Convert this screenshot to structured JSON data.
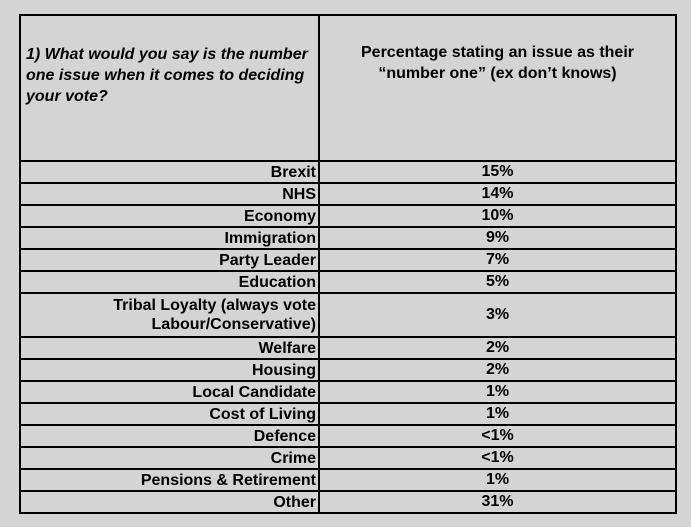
{
  "header": {
    "question": "1) What would you say is the number one issue when it comes to deciding your vote?",
    "column_heading": "Percentage stating an issue as their “number one” (ex don’t knows)"
  },
  "rows": [
    {
      "issue": "Brexit",
      "pct": "15%"
    },
    {
      "issue": "NHS",
      "pct": "14%"
    },
    {
      "issue": "Economy",
      "pct": "10%"
    },
    {
      "issue": "Immigration",
      "pct": "9%"
    },
    {
      "issue": "Party Leader",
      "pct": "7%"
    },
    {
      "issue": "Education",
      "pct": "5%"
    },
    {
      "issue": "Tribal Loyalty (always vote Labour/Conservative)",
      "pct": "3%"
    },
    {
      "issue": "Welfare",
      "pct": "2%"
    },
    {
      "issue": "Housing",
      "pct": "2%"
    },
    {
      "issue": "Local Candidate",
      "pct": "1%"
    },
    {
      "issue": "Cost of Living",
      "pct": "1%"
    },
    {
      "issue": "Defence",
      "pct": "<1%"
    },
    {
      "issue": "Crime",
      "pct": "<1%"
    },
    {
      "issue": "Pensions & Retirement",
      "pct": "1%"
    },
    {
      "issue": "Other",
      "pct": "31%"
    }
  ]
}
